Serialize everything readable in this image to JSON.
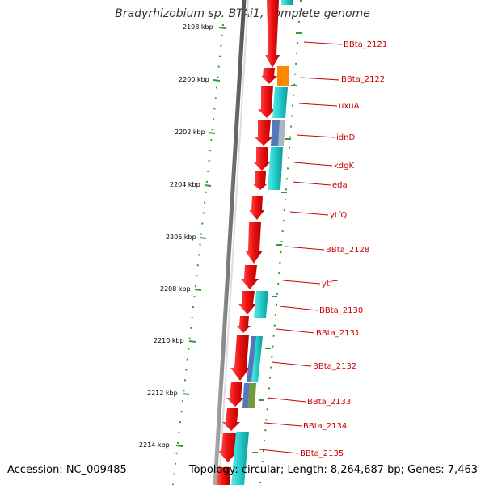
{
  "title": "Bradyrhizobium sp. BTAi1, complete genome",
  "footer": {
    "accession": "Accession: NC_009485",
    "topology": "Topology: circular; Length: 8,264,687 bp; Genes: 7,463"
  },
  "ticks": [
    {
      "label": "2198 kbp"
    },
    {
      "label": "2200 kbp"
    },
    {
      "label": "2202 kbp"
    },
    {
      "label": "2204 kbp"
    },
    {
      "label": "2206 kbp"
    },
    {
      "label": "2208 kbp"
    },
    {
      "label": "2210 kbp"
    },
    {
      "label": "2212 kbp"
    },
    {
      "label": "2214 kbp"
    }
  ],
  "gene_labels": [
    {
      "label": "BBta_2121"
    },
    {
      "label": "BBta_2122"
    },
    {
      "label": "uxuA"
    },
    {
      "label": "idnD"
    },
    {
      "label": "kdgK"
    },
    {
      "label": "eda"
    },
    {
      "label": "ytfQ"
    },
    {
      "label": "BBta_2128"
    },
    {
      "label": "ytfT"
    },
    {
      "label": "BBta_2130"
    },
    {
      "label": "BBta_2131"
    },
    {
      "label": "BBta_2132"
    },
    {
      "label": "BBta_2133"
    },
    {
      "label": "BBta_2134"
    },
    {
      "label": "BBta_2135"
    }
  ],
  "colors": {
    "forward_cds": "#ee1111",
    "cog_cyan": "#22cccc",
    "cog_orange": "#ff8800",
    "cog_blue": "#5577bb",
    "cog_olive": "#779933",
    "backbone": "#888888",
    "tick_green": "#228822",
    "label_red": "#cc0000"
  }
}
